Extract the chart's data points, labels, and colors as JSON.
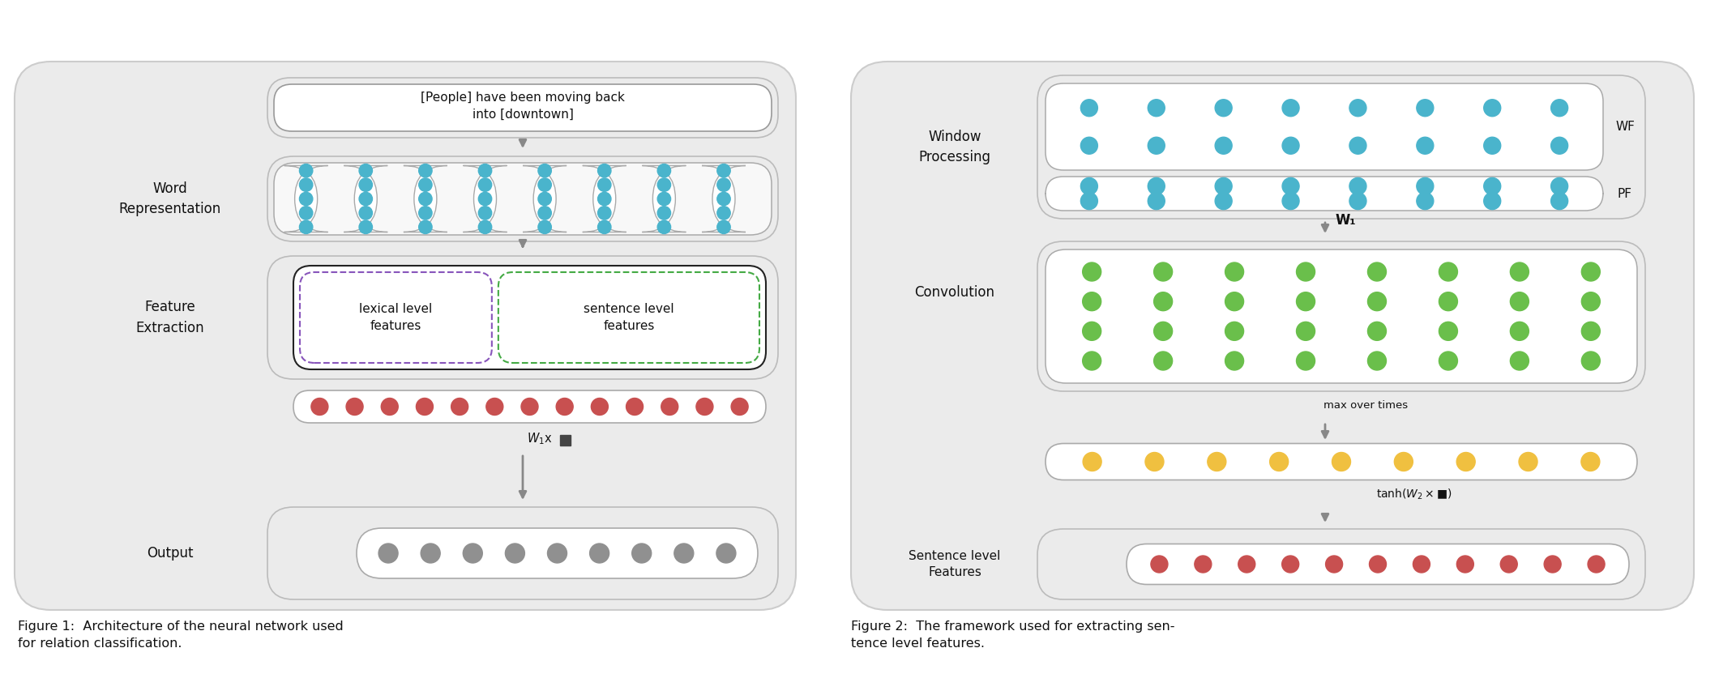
{
  "fig_width": 21.21,
  "fig_height": 8.58,
  "bg_color": "#ffffff",
  "panel_bg": "#ebebeb",
  "box_bg": "#ffffff",
  "teal_color": "#4ab4cc",
  "green_color": "#6abf4b",
  "yellow_color": "#f0c040",
  "red_color": "#c85050",
  "gray_dot": "#909090",
  "gray_arrow": "#888888",
  "text_color": "#111111",
  "purple_dashed": "#8855bb",
  "green_dashed": "#44aa44",
  "black_solid": "#222222",
  "sentence_text": "[People] have been moving back\ninto [downtown]",
  "word_rep_label": "Word\nRepresentation",
  "feat_extract_label": "Feature\nExtraction",
  "output_label": "Output",
  "lexical_label": "lexical level\nfeatures",
  "sentence_label": "sentence level\nfeatures",
  "window_label": "Window\nProcessing",
  "convolution_label": "Convolution",
  "sent_feat_label": "Sentence level\nFeatures",
  "wf_label": "WF",
  "pf_label": "PF",
  "w1_label": "W₁",
  "max_label": "max over times",
  "tanh_label": "tanh(W₂×■)",
  "fig1_caption": "Figure 1:  Architecture of the neural network used\nfor relation classification.",
  "fig2_caption": "Figure 2:  The framework used for extracting sen-\ntence level features."
}
